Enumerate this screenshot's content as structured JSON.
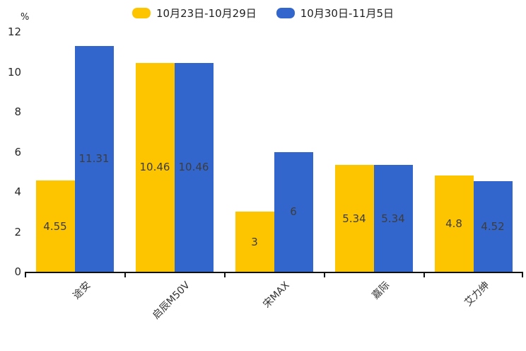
{
  "chart_data": {
    "type": "bar",
    "title": "",
    "categories": [
      "途安",
      "启辰M50V",
      "宋MAX",
      "嘉际",
      "艾力绅"
    ],
    "series": [
      {
        "name": "10月23日-10月29日",
        "color": "#FDC400",
        "values": [
          4.55,
          10.46,
          3,
          5.34,
          4.8
        ]
      },
      {
        "name": "10月30日-11月5日",
        "color": "#3366CC",
        "values": [
          11.31,
          10.46,
          6,
          5.34,
          4.52
        ]
      }
    ],
    "xlabel": "",
    "ylabel": "%",
    "yticks": [
      0,
      2,
      4,
      6,
      8,
      10,
      12
    ],
    "ylim": [
      0,
      12
    ],
    "grid": false,
    "legend_position": "top",
    "bar_value_labels": "inside-center",
    "value_label_color": "#3d3d3d",
    "axis_color": "#111111"
  }
}
